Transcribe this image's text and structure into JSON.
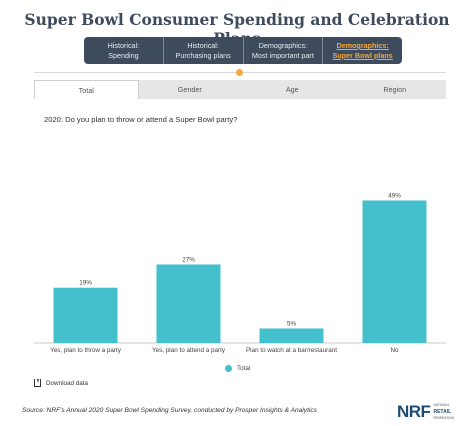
{
  "title": "Super Bowl Consumer Spending and Celebration Plans",
  "nav": [
    {
      "line1": "Historical:",
      "line2": "Spending"
    },
    {
      "line1": "Historical:",
      "line2": "Purchasing plans"
    },
    {
      "line1": "Demographics:",
      "line2": "Most important part"
    },
    {
      "line1": "Demographics:",
      "line2": "Super Bowl plans",
      "active": true
    }
  ],
  "tabs": [
    {
      "label": "Total",
      "active": true
    },
    {
      "label": "Gender"
    },
    {
      "label": "Age"
    },
    {
      "label": "Region"
    }
  ],
  "question": "2020: Do you plan to throw or attend a Super Bowl party?",
  "chart_data": {
    "type": "bar",
    "categories": [
      "Yes, plan to throw a party",
      "Yes, plan to attend a party",
      "Plan to watch at a bar/restaurant",
      "No"
    ],
    "values": [
      19,
      27,
      5,
      49
    ],
    "data_labels": [
      "19%",
      "27%",
      "5%",
      "49%"
    ],
    "series": [
      {
        "name": "Total",
        "values": [
          19,
          27,
          5,
          49
        ]
      }
    ],
    "ylim": [
      0,
      55
    ],
    "legend": "bottom-center",
    "grid": false,
    "color": "#44bfcc"
  },
  "legend_label": "Total",
  "download_label": "Download data",
  "source": "Source: NRF's Annual 2020 Super Bowl Spending Survey, conducted by Prosper Insights & Analytics",
  "logo": {
    "mark": "NRF",
    "line1": "NATIONAL",
    "line2": "RETAIL",
    "line3": "FEDERATION"
  },
  "colors": {
    "accent": "#f4a83c",
    "nav_bg": "#3d4b5c",
    "bar": "#44bfcc",
    "logo": "#1c4c73"
  }
}
